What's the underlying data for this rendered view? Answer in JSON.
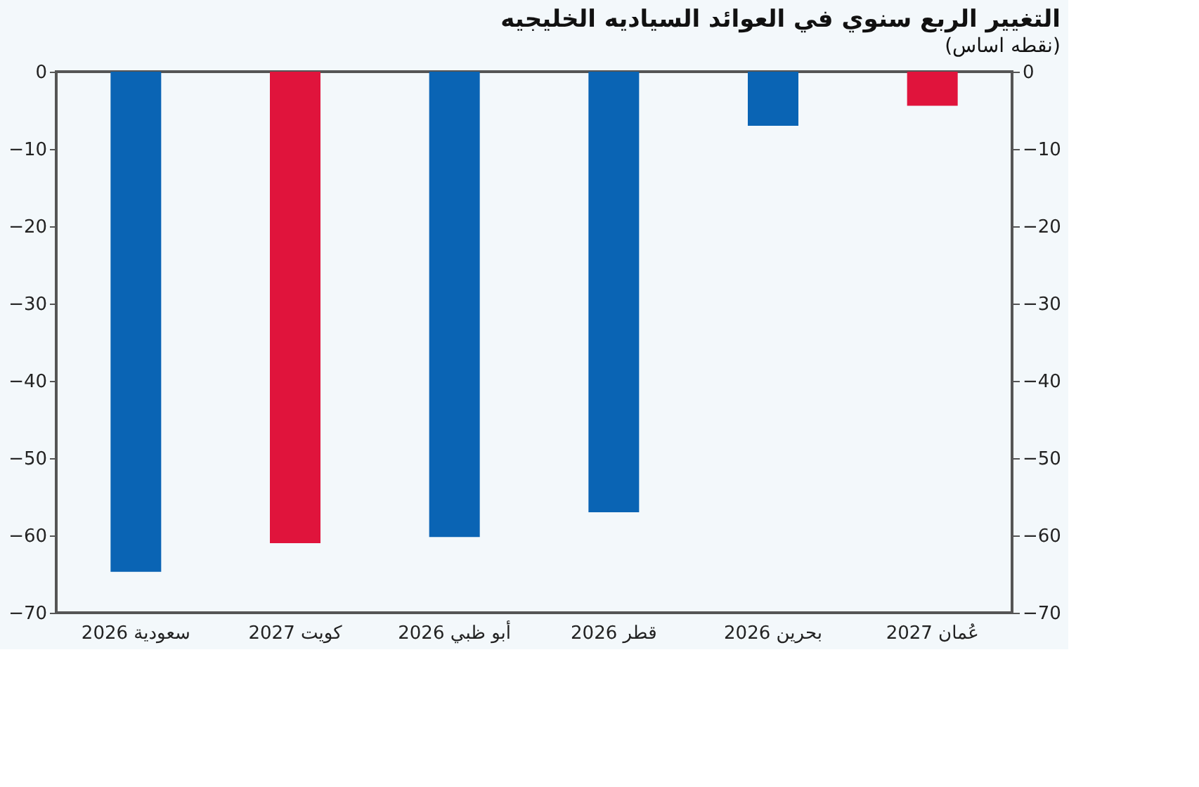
{
  "chart_data": {
    "type": "bar",
    "title": "التغيير الربع سنوي في العوائد السياديه الخليجيه",
    "subtitle": "(نقطه اساس)",
    "categories": [
      "سعودية 2026",
      "كويت 2027",
      "أبو ظبي 2026",
      "قطر 2026",
      "بحرين 2026",
      "عُمان 2027"
    ],
    "values": [
      -64.7,
      -61,
      -60.2,
      -57,
      -7,
      -4.4
    ],
    "colors": [
      "#0a64b4",
      "#e0143c",
      "#0a64b4",
      "#0a64b4",
      "#0a64b4",
      "#e0143c"
    ],
    "ylim": [
      -70,
      0
    ],
    "yticks": [
      0,
      -10,
      -20,
      -30,
      -40,
      -50,
      -60,
      -70
    ],
    "y2lim": [
      -70,
      0
    ],
    "y2ticks": [
      0,
      -10,
      -20,
      -30,
      -40,
      -50,
      -60,
      -70
    ],
    "grid": false
  }
}
